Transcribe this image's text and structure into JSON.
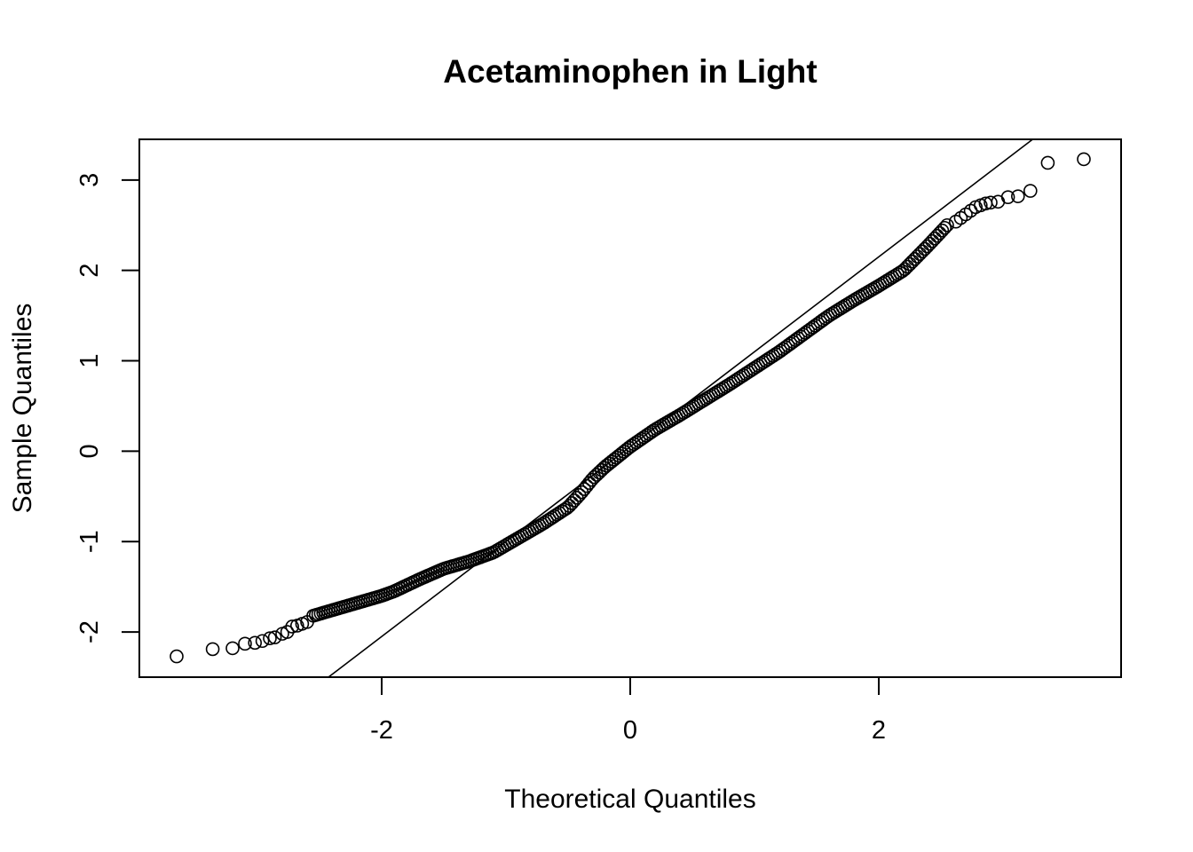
{
  "chart_data": {
    "type": "scatter",
    "title": "Acetaminophen in Light",
    "xlabel": "Theoretical Quantiles",
    "ylabel": "Sample Quantiles",
    "xlim": [
      -3.95,
      3.95
    ],
    "ylim": [
      -2.5,
      3.45
    ],
    "xticks": [
      -2,
      0,
      2
    ],
    "xtick_labels": [
      "-2",
      "0",
      "2"
    ],
    "yticks": [
      -2,
      -1,
      0,
      1,
      2,
      3
    ],
    "ytick_labels": [
      "-2",
      "-1",
      "0",
      "1",
      "2",
      "3"
    ],
    "grid": false,
    "reference_line": {
      "intercept": 0.05,
      "slope": 1.05
    },
    "quantile_curve": {
      "theoretical": [
        -2.55,
        -2.3,
        -2.0,
        -1.9,
        -1.7,
        -1.5,
        -1.3,
        -1.1,
        -0.9,
        -0.7,
        -0.5,
        -0.4,
        -0.3,
        -0.2,
        -0.1,
        0.0,
        0.2,
        0.4,
        0.6,
        0.8,
        1.0,
        1.2,
        1.4,
        1.6,
        1.8,
        2.0,
        2.2,
        2.4,
        2.55
      ],
      "sample": [
        -1.82,
        -1.72,
        -1.6,
        -1.55,
        -1.42,
        -1.3,
        -1.22,
        -1.12,
        -0.96,
        -0.8,
        -0.62,
        -0.47,
        -0.3,
        -0.17,
        -0.06,
        0.05,
        0.24,
        0.4,
        0.57,
        0.74,
        0.92,
        1.1,
        1.3,
        1.5,
        1.67,
        1.83,
        2.0,
        2.28,
        2.5
      ]
    },
    "tail_points": {
      "theoretical": [
        -3.65,
        -3.36,
        -3.2,
        -3.1,
        -3.02,
        -2.96,
        -2.9,
        -2.86,
        -2.8,
        -2.76,
        -2.72,
        -2.68,
        -2.64,
        -2.6,
        2.62,
        2.66,
        2.7,
        2.74,
        2.78,
        2.82,
        2.86,
        2.9,
        2.96,
        3.04,
        3.12,
        3.22,
        3.36,
        3.65
      ],
      "sample": [
        -2.27,
        -2.19,
        -2.18,
        -2.13,
        -2.12,
        -2.1,
        -2.07,
        -2.06,
        -2.02,
        -2.0,
        -1.94,
        -1.93,
        -1.91,
        -1.89,
        2.54,
        2.58,
        2.62,
        2.66,
        2.7,
        2.72,
        2.74,
        2.75,
        2.76,
        2.81,
        2.82,
        2.88,
        3.19,
        3.23
      ]
    }
  }
}
